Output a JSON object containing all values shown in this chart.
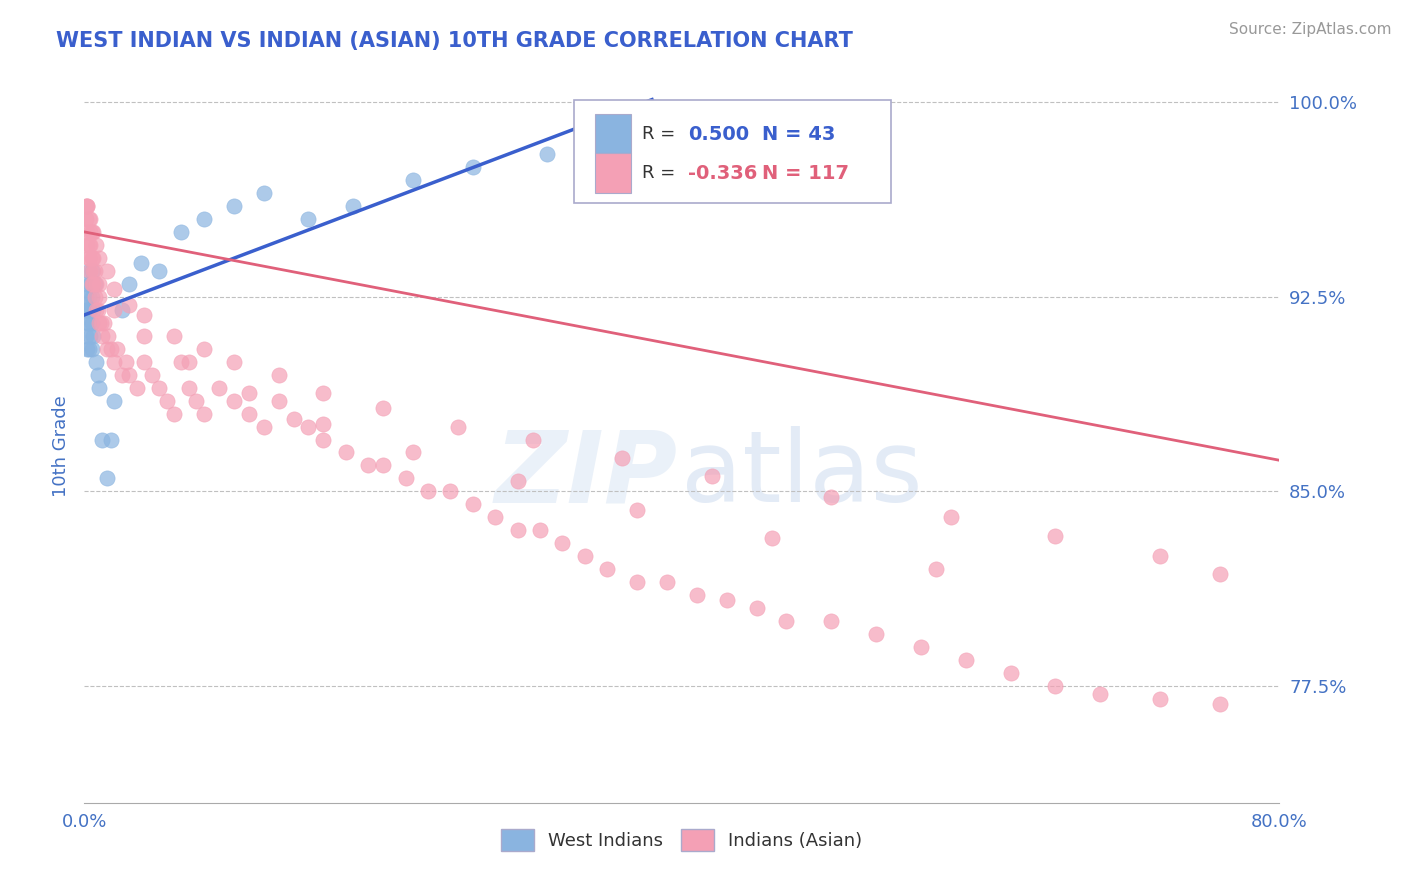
{
  "title": "WEST INDIAN VS INDIAN (ASIAN) 10TH GRADE CORRELATION CHART",
  "title_color": "#3a5fcd",
  "source_text": "Source: ZipAtlas.com",
  "ylabel": "10th Grade",
  "xlim": [
    0.0,
    0.8
  ],
  "ylim": [
    0.73,
    1.005
  ],
  "xticks": [
    0.0,
    0.1,
    0.2,
    0.3,
    0.4,
    0.5,
    0.6,
    0.7,
    0.8
  ],
  "xtick_labels": [
    "0.0%",
    "",
    "",
    "",
    "",
    "",
    "",
    "",
    "80.0%"
  ],
  "yticks": [
    0.775,
    0.85,
    0.925,
    1.0
  ],
  "ytick_labels": [
    "77.5%",
    "85.0%",
    "92.5%",
    "100.0%"
  ],
  "blue_R": 0.5,
  "blue_N": 43,
  "pink_R": -0.336,
  "pink_N": 117,
  "blue_color": "#8ab4e0",
  "pink_color": "#f4a0b5",
  "blue_line_color": "#3a5fcd",
  "pink_line_color": "#e0607a",
  "legend_label_blue": "West Indians",
  "legend_label_pink": "Indians (Asian)",
  "blue_line_x0": 0.0,
  "blue_line_y0": 0.918,
  "blue_line_x1": 0.38,
  "blue_line_y1": 1.001,
  "pink_line_x0": 0.0,
  "pink_line_x1": 0.8,
  "pink_line_y0": 0.95,
  "pink_line_y1": 0.862,
  "blue_x": [
    0.001,
    0.001,
    0.001,
    0.002,
    0.002,
    0.002,
    0.002,
    0.003,
    0.003,
    0.003,
    0.003,
    0.003,
    0.004,
    0.004,
    0.004,
    0.005,
    0.005,
    0.005,
    0.005,
    0.006,
    0.006,
    0.007,
    0.008,
    0.009,
    0.01,
    0.012,
    0.015,
    0.018,
    0.02,
    0.025,
    0.03,
    0.038,
    0.05,
    0.065,
    0.08,
    0.1,
    0.12,
    0.15,
    0.18,
    0.22,
    0.26,
    0.31,
    0.38
  ],
  "blue_y": [
    0.91,
    0.92,
    0.925,
    0.905,
    0.915,
    0.92,
    0.93,
    0.905,
    0.915,
    0.92,
    0.925,
    0.935,
    0.91,
    0.92,
    0.93,
    0.905,
    0.915,
    0.925,
    0.935,
    0.91,
    0.92,
    0.93,
    0.9,
    0.895,
    0.89,
    0.87,
    0.855,
    0.87,
    0.885,
    0.92,
    0.93,
    0.938,
    0.935,
    0.95,
    0.955,
    0.96,
    0.965,
    0.955,
    0.96,
    0.97,
    0.975,
    0.98,
    0.998
  ],
  "pink_x": [
    0.001,
    0.001,
    0.002,
    0.002,
    0.002,
    0.003,
    0.003,
    0.003,
    0.004,
    0.004,
    0.004,
    0.005,
    0.005,
    0.005,
    0.006,
    0.006,
    0.007,
    0.007,
    0.008,
    0.008,
    0.009,
    0.01,
    0.01,
    0.011,
    0.012,
    0.013,
    0.015,
    0.016,
    0.018,
    0.02,
    0.022,
    0.025,
    0.028,
    0.03,
    0.035,
    0.04,
    0.045,
    0.05,
    0.055,
    0.06,
    0.065,
    0.07,
    0.075,
    0.08,
    0.09,
    0.1,
    0.11,
    0.12,
    0.13,
    0.14,
    0.15,
    0.16,
    0.175,
    0.19,
    0.2,
    0.215,
    0.23,
    0.245,
    0.26,
    0.275,
    0.29,
    0.305,
    0.32,
    0.335,
    0.35,
    0.37,
    0.39,
    0.41,
    0.43,
    0.45,
    0.47,
    0.5,
    0.53,
    0.56,
    0.59,
    0.62,
    0.65,
    0.68,
    0.72,
    0.76,
    0.002,
    0.004,
    0.006,
    0.008,
    0.01,
    0.015,
    0.02,
    0.03,
    0.04,
    0.06,
    0.08,
    0.1,
    0.13,
    0.16,
    0.2,
    0.25,
    0.3,
    0.36,
    0.42,
    0.5,
    0.58,
    0.65,
    0.72,
    0.76,
    0.003,
    0.006,
    0.01,
    0.02,
    0.04,
    0.07,
    0.11,
    0.16,
    0.22,
    0.29,
    0.37,
    0.46,
    0.57
  ],
  "pink_y": [
    0.955,
    0.96,
    0.945,
    0.95,
    0.96,
    0.94,
    0.945,
    0.955,
    0.935,
    0.945,
    0.95,
    0.93,
    0.94,
    0.95,
    0.93,
    0.94,
    0.925,
    0.935,
    0.92,
    0.93,
    0.92,
    0.915,
    0.925,
    0.915,
    0.91,
    0.915,
    0.905,
    0.91,
    0.905,
    0.9,
    0.905,
    0.895,
    0.9,
    0.895,
    0.89,
    0.9,
    0.895,
    0.89,
    0.885,
    0.88,
    0.9,
    0.89,
    0.885,
    0.88,
    0.89,
    0.885,
    0.88,
    0.875,
    0.885,
    0.878,
    0.875,
    0.87,
    0.865,
    0.86,
    0.86,
    0.855,
    0.85,
    0.85,
    0.845,
    0.84,
    0.835,
    0.835,
    0.83,
    0.825,
    0.82,
    0.815,
    0.815,
    0.81,
    0.808,
    0.805,
    0.8,
    0.8,
    0.795,
    0.79,
    0.785,
    0.78,
    0.775,
    0.772,
    0.77,
    0.768,
    0.96,
    0.955,
    0.95,
    0.945,
    0.94,
    0.935,
    0.928,
    0.922,
    0.918,
    0.91,
    0.905,
    0.9,
    0.895,
    0.888,
    0.882,
    0.875,
    0.87,
    0.863,
    0.856,
    0.848,
    0.84,
    0.833,
    0.825,
    0.818,
    0.94,
    0.935,
    0.93,
    0.92,
    0.91,
    0.9,
    0.888,
    0.876,
    0.865,
    0.854,
    0.843,
    0.832,
    0.82
  ]
}
